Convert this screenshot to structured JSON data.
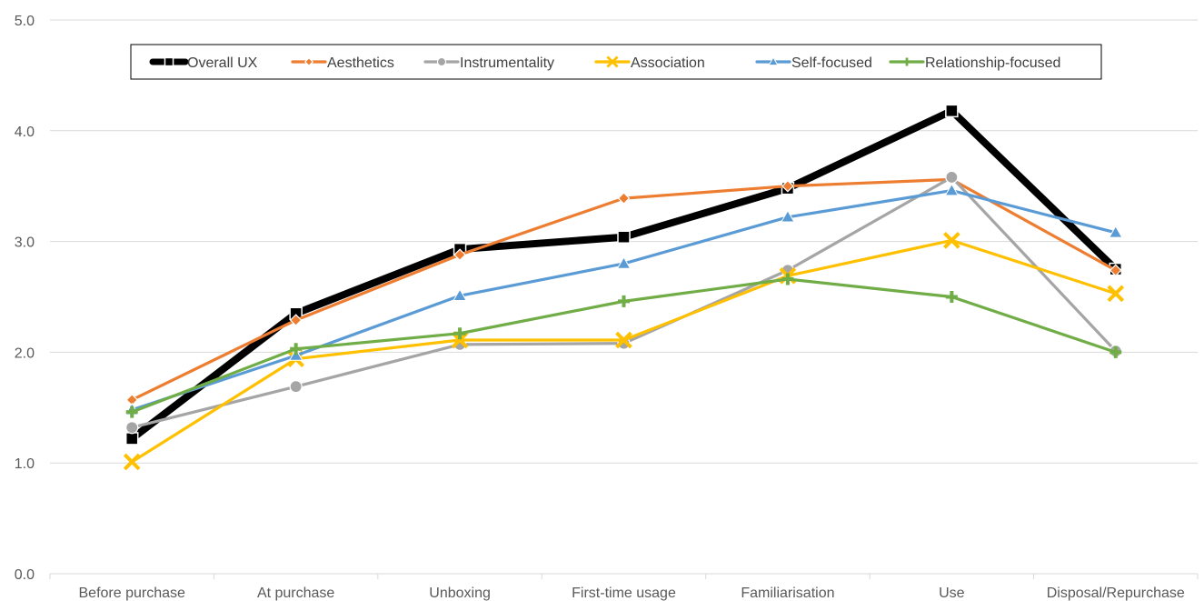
{
  "chart_data": {
    "type": "line",
    "categories": [
      "Before purchase",
      "At purchase",
      "Unboxing",
      "First-time usage",
      "Familiarisation",
      "Use",
      "Disposal/Repurchase"
    ],
    "ylim": [
      0,
      5
    ],
    "yticks": [
      0,
      1,
      2,
      3,
      4,
      5
    ],
    "ytick_labels": [
      "0.0",
      "1.0",
      "2.0",
      "3.0",
      "4.0",
      "5.0"
    ],
    "grid": true,
    "legend_position": "top",
    "series": [
      {
        "name": "Overall UX",
        "color": "#000000",
        "marker": "square",
        "values": [
          1.22,
          2.35,
          2.93,
          3.04,
          3.48,
          4.18,
          2.75
        ]
      },
      {
        "name": "Aesthetics",
        "color": "#ED7D31",
        "marker": "diamond",
        "values": [
          1.57,
          2.29,
          2.88,
          3.39,
          3.5,
          3.56,
          2.74
        ]
      },
      {
        "name": "Instrumentality",
        "color": "#A5A5A5",
        "marker": "circle",
        "values": [
          1.32,
          1.69,
          2.07,
          2.08,
          2.74,
          3.58,
          2.01
        ]
      },
      {
        "name": "Association",
        "color": "#FFC000",
        "marker": "x",
        "values": [
          1.01,
          1.94,
          2.11,
          2.11,
          2.69,
          3.01,
          2.53
        ]
      },
      {
        "name": "Self-focused",
        "color": "#5B9BD5",
        "marker": "triangle",
        "values": [
          1.48,
          1.97,
          2.51,
          2.8,
          3.22,
          3.46,
          3.08
        ]
      },
      {
        "name": "Relationship-focused",
        "color": "#70AD47",
        "marker": "plus",
        "values": [
          1.46,
          2.03,
          2.17,
          2.46,
          2.66,
          2.5,
          2.0
        ]
      }
    ]
  }
}
